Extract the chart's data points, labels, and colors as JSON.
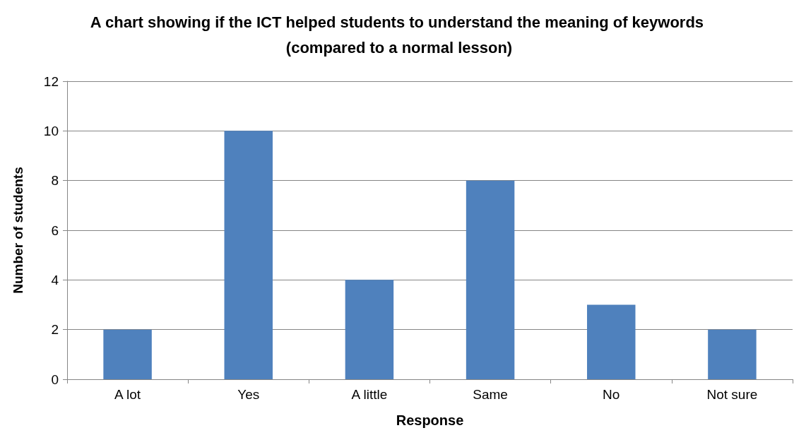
{
  "chart_data": {
    "type": "bar",
    "title": "A chart showing if the ICT helped students to understand the meaning of keywords (compared to a normal lesson)",
    "xlabel": "Response",
    "ylabel": "Number of students",
    "categories": [
      "A lot",
      "Yes",
      "A little",
      "Same",
      "No",
      "Not sure"
    ],
    "values": [
      2,
      10,
      4,
      8,
      3,
      2
    ],
    "color": "#4f81bd",
    "ylim": [
      0,
      12
    ],
    "yticks": [
      0,
      2,
      4,
      6,
      8,
      10,
      12
    ],
    "grid": "y"
  }
}
